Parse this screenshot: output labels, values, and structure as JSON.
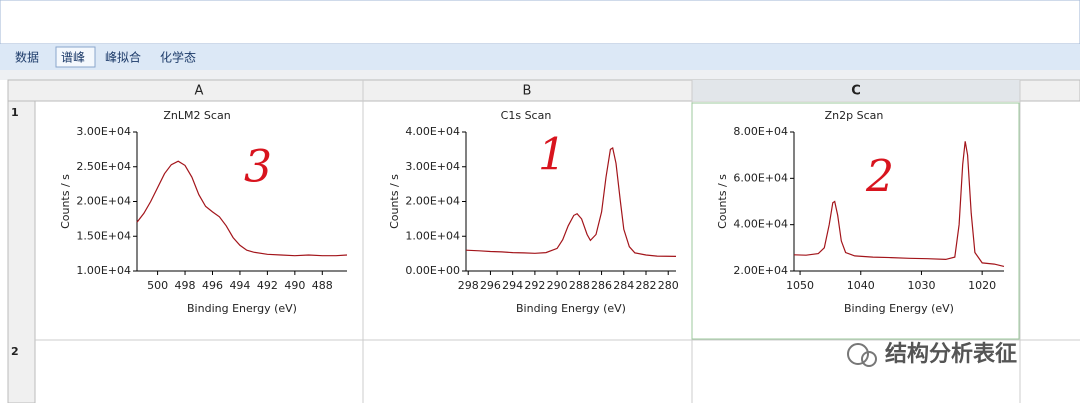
{
  "tabs": [
    "数据",
    "谱峰",
    "峰拟合",
    "化学态"
  ],
  "columns": [
    "A",
    "B",
    "C"
  ],
  "rows": [
    "1",
    "2"
  ],
  "watermark": "结构分析表征",
  "chart_data": [
    {
      "type": "line",
      "title": "ZnLM2 Scan",
      "x_label": "Binding Energy (eV)",
      "y_label": "Counts / s",
      "annotation": "3",
      "color": "#a3151b",
      "x": [
        501.5,
        501,
        500.5,
        500,
        499.5,
        499,
        498.5,
        498,
        497.5,
        497,
        496.5,
        496,
        495.5,
        495,
        494.5,
        494,
        493.5,
        493,
        492,
        491,
        490,
        489,
        488,
        487,
        486.2
      ],
      "values": [
        17000,
        18300,
        20000,
        22000,
        24000,
        25300,
        25800,
        25200,
        23500,
        21000,
        19300,
        18500,
        17800,
        16500,
        14800,
        13700,
        13000,
        12700,
        12400,
        12300,
        12200,
        12300,
        12200,
        12200,
        12300
      ],
      "xlim": [
        501.5,
        486.2
      ],
      "xticks": [
        500,
        498,
        496,
        494,
        492,
        490,
        488
      ],
      "ylim": [
        10000,
        30000
      ],
      "yticks": [
        {
          "value": 10000,
          "label": "1.00E+04"
        },
        {
          "value": 15000,
          "label": "1.50E+04"
        },
        {
          "value": 20000,
          "label": "2.00E+04"
        },
        {
          "value": 25000,
          "label": "2.50E+04"
        },
        {
          "value": 30000,
          "label": "3.00E+04"
        }
      ]
    },
    {
      "type": "line",
      "title": "C1s Scan",
      "x_label": "Binding Energy (eV)",
      "y_label": "Counts / s",
      "annotation": "1",
      "color": "#a3151b",
      "x": [
        298.2,
        297,
        296,
        295,
        294,
        293,
        292,
        291,
        290,
        289.5,
        289,
        288.5,
        288.2,
        287.8,
        287.3,
        287,
        286.5,
        286,
        285.6,
        285.2,
        285,
        284.7,
        284.3,
        284,
        283.5,
        283,
        282,
        281,
        279.3
      ],
      "values": [
        6000,
        5800,
        5600,
        5500,
        5300,
        5200,
        5100,
        5300,
        6500,
        9000,
        13000,
        16000,
        16500,
        15000,
        10500,
        8800,
        10500,
        17000,
        27000,
        35000,
        35400,
        31000,
        20000,
        12000,
        7000,
        5200,
        4600,
        4300,
        4200
      ],
      "xlim": [
        298.2,
        279.3
      ],
      "xticks": [
        298,
        296,
        294,
        292,
        290,
        288,
        286,
        284,
        282,
        280
      ],
      "ylim": [
        0,
        40000
      ],
      "yticks": [
        {
          "value": 0,
          "label": "0.00E+00"
        },
        {
          "value": 10000,
          "label": "1.00E+04"
        },
        {
          "value": 20000,
          "label": "2.00E+04"
        },
        {
          "value": 30000,
          "label": "3.00E+04"
        },
        {
          "value": 40000,
          "label": "4.00E+04"
        }
      ]
    },
    {
      "type": "line",
      "title": "Zn2p Scan",
      "x_label": "Binding Energy (eV)",
      "y_label": "Counts / s",
      "annotation": "2",
      "color": "#a3151b",
      "x": [
        1051,
        1049,
        1047,
        1046,
        1045.2,
        1044.6,
        1044.3,
        1043.8,
        1043.2,
        1042.5,
        1041,
        1038,
        1035,
        1032,
        1029,
        1026,
        1024.5,
        1023.8,
        1023.2,
        1022.8,
        1022.4,
        1021.8,
        1021.2,
        1020,
        1018,
        1016.4
      ],
      "values": [
        27000,
        26800,
        27500,
        30000,
        40000,
        49500,
        50000,
        44000,
        33000,
        28000,
        26500,
        26000,
        25800,
        25500,
        25300,
        25000,
        26000,
        40000,
        66000,
        76000,
        70000,
        45000,
        28000,
        23500,
        23000,
        22000
      ],
      "xlim": [
        1051,
        1016.4
      ],
      "xticks": [
        1050,
        1040,
        1030,
        1020
      ],
      "ylim": [
        20000,
        80000
      ],
      "yticks": [
        {
          "value": 20000,
          "label": "2.00E+04"
        },
        {
          "value": 40000,
          "label": "4.00E+04"
        },
        {
          "value": 60000,
          "label": "6.00E+04"
        },
        {
          "value": 80000,
          "label": "8.00E+04"
        }
      ]
    }
  ]
}
